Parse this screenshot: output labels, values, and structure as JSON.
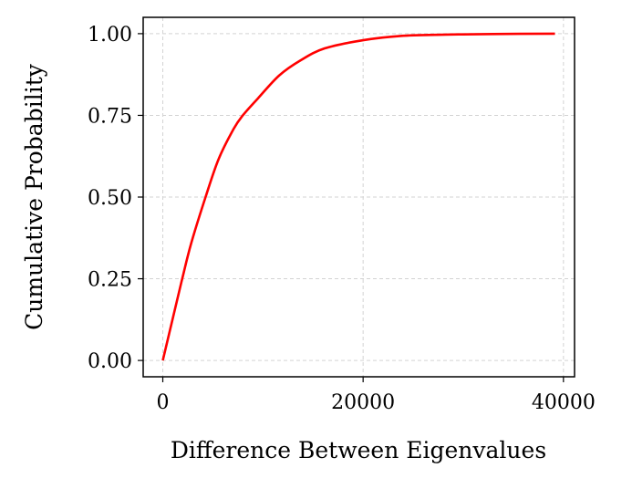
{
  "chart_data": {
    "type": "line",
    "title": "",
    "xlabel": "Difference Between Eigenvalues",
    "ylabel": "Cumulative Probability",
    "xlim": [
      -1958,
      41108
    ],
    "ylim": [
      -0.05,
      1.05
    ],
    "xticks": [
      0,
      20000,
      40000
    ],
    "xtick_labels": [
      "0",
      "20000",
      "40000"
    ],
    "yticks": [
      0,
      0.25,
      0.5,
      0.75,
      1.0
    ],
    "ytick_labels": [
      "0.00",
      "0.25",
      "0.50",
      "0.75",
      "1.00"
    ],
    "grid": true,
    "series": [
      {
        "color": "#ff0000",
        "x": [
          0,
          1030,
          1940,
          2850,
          4270,
          5570,
          7080,
          7990,
          9500,
          11620,
          13740,
          16160,
          20000,
          23720,
          28260,
          33000,
          39150
        ],
        "y": [
          0,
          0.133,
          0.25,
          0.36,
          0.5,
          0.616,
          0.709,
          0.75,
          0.802,
          0.872,
          0.918,
          0.955,
          0.98,
          0.993,
          0.997,
          0.999,
          1.0
        ]
      }
    ]
  }
}
